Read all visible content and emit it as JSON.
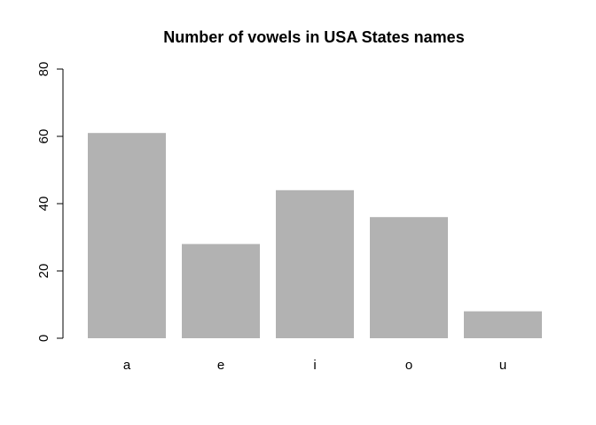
{
  "chart_data": {
    "type": "bar",
    "title": "Number of vowels in USA States names",
    "xlabel": "",
    "ylabel": "",
    "categories": [
      "a",
      "e",
      "i",
      "o",
      "u"
    ],
    "values": [
      61,
      28,
      44,
      36,
      8
    ],
    "ylim": [
      0,
      80
    ],
    "yticks": [
      0,
      20,
      40,
      60,
      80
    ],
    "bar_color": "#b2b2b2",
    "grid": false,
    "legend": "none"
  }
}
